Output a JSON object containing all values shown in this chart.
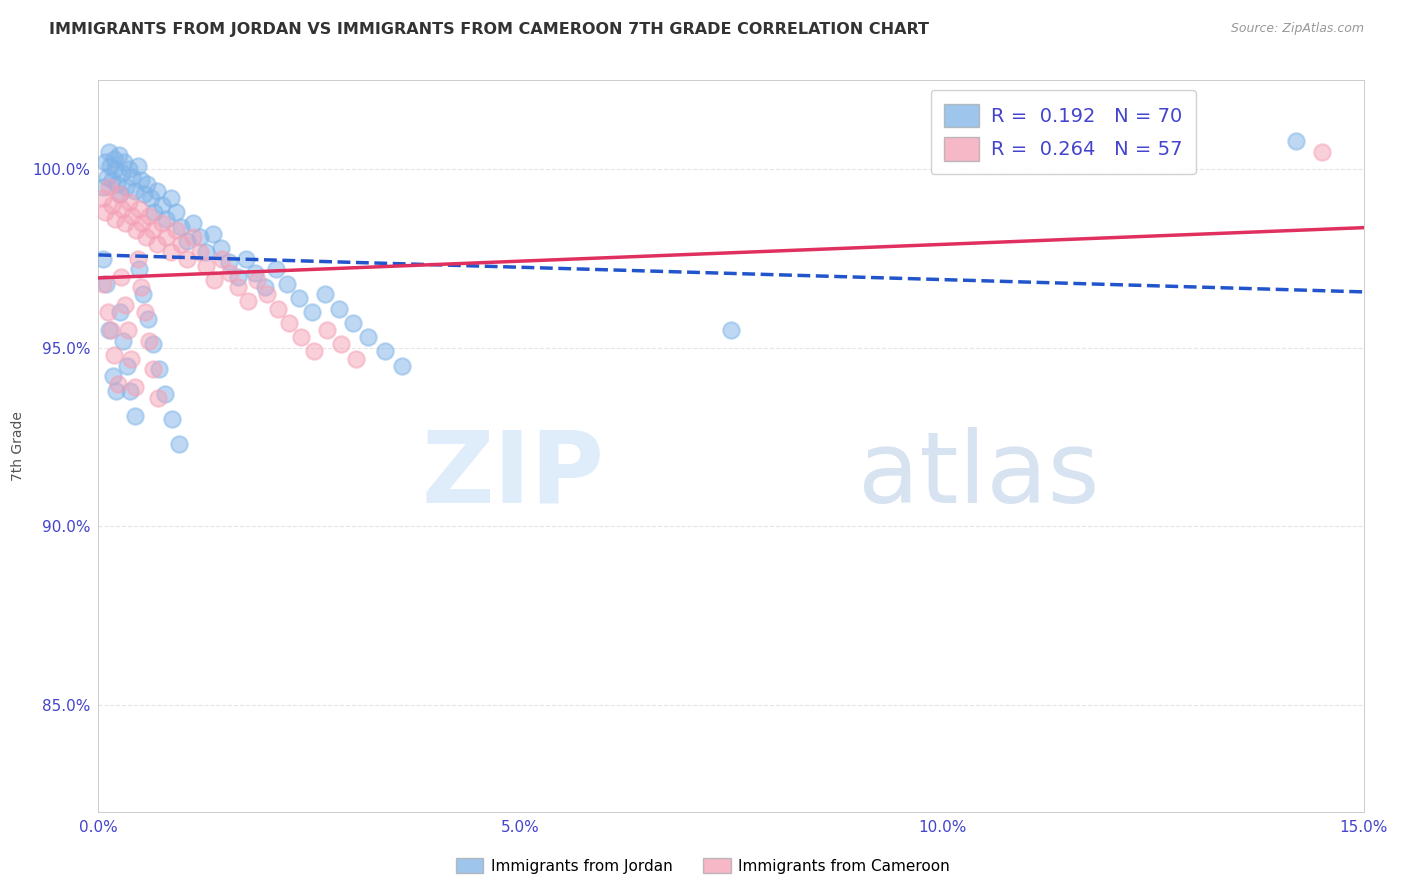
{
  "title": "IMMIGRANTS FROM JORDAN VS IMMIGRANTS FROM CAMEROON 7TH GRADE CORRELATION CHART",
  "source": "Source: ZipAtlas.com",
  "ylabel": "7th Grade",
  "xlim": [
    0.0,
    15.0
  ],
  "ylim": [
    82.0,
    102.5
  ],
  "xtick_vals": [
    0.0,
    5.0,
    10.0,
    15.0
  ],
  "xtick_labels": [
    "0.0%",
    "5.0%",
    "10.0%",
    "15.0%"
  ],
  "ytick_vals": [
    85.0,
    90.0,
    95.0,
    100.0
  ],
  "ytick_labels": [
    "85.0%",
    "90.0%",
    "95.0%",
    "100.0%"
  ],
  "jordan_color": "#7eb3e8",
  "cameroon_color": "#f4a0b5",
  "jordan_R": 0.192,
  "jordan_N": 70,
  "cameroon_R": 0.264,
  "cameroon_N": 57,
  "jordan_x": [
    0.05,
    0.08,
    0.1,
    0.12,
    0.14,
    0.16,
    0.18,
    0.2,
    0.22,
    0.24,
    0.26,
    0.28,
    0.3,
    0.33,
    0.36,
    0.4,
    0.43,
    0.47,
    0.5,
    0.54,
    0.58,
    0.62,
    0.66,
    0.7,
    0.75,
    0.8,
    0.86,
    0.92,
    0.98,
    1.05,
    1.12,
    1.2,
    1.28,
    1.36,
    1.45,
    1.55,
    1.65,
    1.75,
    1.86,
    1.97,
    2.1,
    2.24,
    2.38,
    2.53,
    2.68,
    2.85,
    3.02,
    3.2,
    3.4,
    3.6,
    0.05,
    0.09,
    0.13,
    0.17,
    0.21,
    0.25,
    0.29,
    0.34,
    0.38,
    0.43,
    0.48,
    0.53,
    0.59,
    0.65,
    0.72,
    0.79,
    0.87,
    0.96,
    14.2,
    7.5
  ],
  "jordan_y": [
    99.5,
    100.2,
    99.8,
    100.5,
    100.1,
    99.7,
    100.3,
    100.0,
    99.6,
    100.4,
    99.3,
    99.9,
    100.2,
    99.5,
    100.0,
    99.8,
    99.4,
    100.1,
    99.7,
    99.3,
    99.6,
    99.2,
    98.8,
    99.4,
    99.0,
    98.6,
    99.2,
    98.8,
    98.4,
    98.0,
    98.5,
    98.1,
    97.7,
    98.2,
    97.8,
    97.4,
    97.0,
    97.5,
    97.1,
    96.7,
    97.2,
    96.8,
    96.4,
    96.0,
    96.5,
    96.1,
    95.7,
    95.3,
    94.9,
    94.5,
    97.5,
    96.8,
    95.5,
    94.2,
    93.8,
    96.0,
    95.2,
    94.5,
    93.8,
    93.1,
    97.2,
    96.5,
    95.8,
    95.1,
    94.4,
    93.7,
    93.0,
    92.3,
    100.8,
    95.5
  ],
  "cameroon_x": [
    0.05,
    0.08,
    0.12,
    0.16,
    0.2,
    0.24,
    0.28,
    0.32,
    0.36,
    0.4,
    0.44,
    0.48,
    0.52,
    0.56,
    0.6,
    0.65,
    0.7,
    0.75,
    0.8,
    0.86,
    0.92,
    0.98,
    1.05,
    1.12,
    1.2,
    1.28,
    1.37,
    1.46,
    1.56,
    1.66,
    1.77,
    1.88,
    2.0,
    2.13,
    2.26,
    2.4,
    2.55,
    2.71,
    2.88,
    3.05,
    0.06,
    0.11,
    0.15,
    0.19,
    0.23,
    0.27,
    0.31,
    0.35,
    0.39,
    0.43,
    0.47,
    0.51,
    0.55,
    0.6,
    0.65,
    0.71,
    14.5
  ],
  "cameroon_y": [
    99.2,
    98.8,
    99.5,
    99.0,
    98.6,
    99.3,
    98.9,
    98.5,
    99.1,
    98.7,
    98.3,
    98.9,
    98.5,
    98.1,
    98.7,
    98.3,
    97.9,
    98.5,
    98.1,
    97.7,
    98.3,
    97.9,
    97.5,
    98.1,
    97.7,
    97.3,
    96.9,
    97.5,
    97.1,
    96.7,
    96.3,
    96.9,
    96.5,
    96.1,
    95.7,
    95.3,
    94.9,
    95.5,
    95.1,
    94.7,
    96.8,
    96.0,
    95.5,
    94.8,
    94.0,
    97.0,
    96.2,
    95.5,
    94.7,
    93.9,
    97.5,
    96.7,
    96.0,
    95.2,
    94.4,
    93.6,
    100.5
  ],
  "grid_color": "#e5e5e5",
  "title_color": "#333333",
  "tick_color": "#4444cc",
  "legend_jordan_label": "R =  0.192   N = 70",
  "legend_cameroon_label": "R =  0.264   N = 57",
  "bottom_legend_jordan": "Immigrants from Jordan",
  "bottom_legend_cameroon": "Immigrants from Cameroon",
  "jordan_trend_color": "#2255cc",
  "cameroon_trend_color": "#e03060"
}
